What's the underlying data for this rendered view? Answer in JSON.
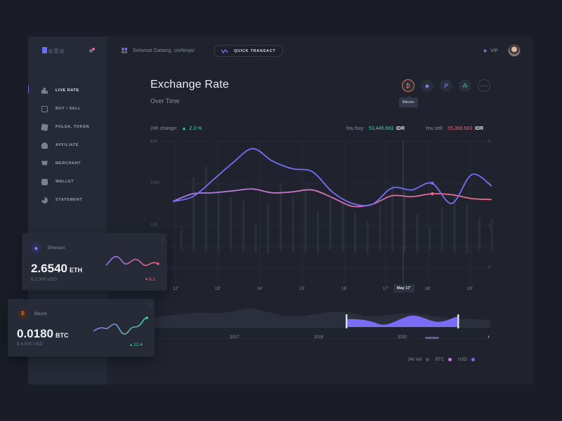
{
  "header": {
    "welcome": "Selamat Datang, uixNinja!",
    "quick_transact": "QUICK TRANSACT",
    "vip": "VIP"
  },
  "sidebar": {
    "items": [
      {
        "label": "LIVE RATE",
        "active": true
      },
      {
        "label": "BUY / SELL"
      },
      {
        "label": "PULSA, TOKEN"
      },
      {
        "label": "AFFILIATE"
      },
      {
        "label": "MERCHANT"
      },
      {
        "label": "WALLET"
      },
      {
        "label": "STATEMENT"
      }
    ]
  },
  "main": {
    "title": "Exchange Rate",
    "subtitle": "Over Time",
    "tooltip": "Bitcoin",
    "coins": [
      "bitcoin",
      "ethereum",
      "paypal",
      "ripple",
      "more"
    ],
    "change_label": "24h change:",
    "change_value": "2.3 %",
    "buy_label": "You buy:",
    "buy_value": "53,445.663",
    "sell_label": "You sell:",
    "sell_value": "55,366.663",
    "currency": "IDR",
    "highlight_date": "May 17'",
    "years": [
      "2017",
      "2018",
      "2020"
    ]
  },
  "legend": {
    "vol": "24h Vol",
    "btc": "BTC",
    "usd": "USD"
  },
  "cards": {
    "eth": {
      "name": "Etherium",
      "value": "2.6540",
      "unit": "ETH",
      "usd": "$ 2,300 USD",
      "change": "8.2"
    },
    "btc": {
      "name": "Bitcoin",
      "value": "0.0180",
      "unit": "BTC",
      "usd": "$ 4,500 USD",
      "change": "12.4"
    }
  },
  "chart_data": {
    "type": "line",
    "title": "Exchange Rate",
    "subtitle": "Over Time",
    "y_left_ticks": [
      "10K",
      "1000",
      "100"
    ],
    "y_right_ticks": [
      "6",
      "4",
      "2",
      "0"
    ],
    "x_ticks": [
      "12'",
      "13'",
      "14'",
      "15'",
      "16'",
      "17'",
      "May 17'",
      "18'",
      "19'"
    ],
    "series": [
      {
        "name": "USD",
        "color": "#7b6cf5",
        "values": [
          3.1,
          3.35,
          4.2,
          5.1,
          5.85,
          5.2,
          4.8,
          4.65,
          3.6,
          3.0,
          2.95,
          3.8,
          3.7,
          4.05,
          3.0,
          4.5,
          3.9
        ]
      },
      {
        "name": "BTC",
        "color": "#e0698c",
        "values": [
          3.1,
          3.5,
          3.55,
          3.65,
          3.75,
          3.55,
          3.6,
          3.7,
          3.3,
          2.85,
          2.95,
          3.4,
          3.35,
          3.5,
          3.45,
          3.25,
          3.2
        ]
      },
      {
        "name": "24h Vol",
        "color": "#2b2f3c",
        "values": [
          1.2,
          4.6,
          5.3,
          3.8,
          3.3,
          3.1,
          1.6,
          2.9,
          4.2,
          3.4,
          3.9,
          2.4,
          3.2,
          3.0,
          2.3,
          1.8,
          2.8,
          4.1,
          3.7,
          2.2,
          1.4,
          2.6,
          3.5,
          2.9,
          2.0,
          1.9
        ]
      }
    ]
  }
}
